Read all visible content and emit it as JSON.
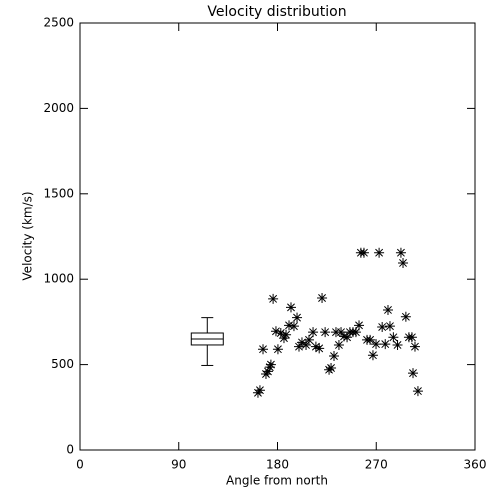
{
  "chart_data": {
    "type": "scatter",
    "title": "Velocity distribution",
    "x_label": "Angle from north",
    "y_label": "Velocity (km/s)",
    "xlim": [
      0,
      360
    ],
    "ylim": [
      0,
      2500
    ],
    "xticks": [
      0,
      90,
      180,
      270,
      360
    ],
    "yticks": [
      0,
      500,
      1000,
      1500,
      2000,
      2500
    ],
    "color": "#000000",
    "x": [
      162.2,
      164,
      166.8,
      169.5,
      171.3,
      173,
      174,
      176,
      178.6,
      180.4,
      183,
      185.9,
      187.8,
      190.5,
      192.3,
      195,
      197.8,
      199.6,
      202.3,
      206,
      208.7,
      212.4,
      215,
      218,
      220.6,
      223.4,
      227,
      228.8,
      231.5,
      233.3,
      236,
      237.9,
      240.6,
      243.4,
      246,
      248.8,
      251.5,
      254.3,
      256,
      258.8,
      261.6,
      264.4,
      267,
      269.8,
      272.6,
      275.4,
      278.2,
      280.7,
      282.5,
      285.6,
      289.4,
      292.5,
      294.4,
      297,
      299.8,
      302.5,
      303.5,
      305.3,
      308
    ],
    "y": [
      335,
      350,
      590,
      445,
      460,
      485,
      500,
      885,
      695,
      590,
      685,
      655,
      675,
      730,
      835,
      725,
      775,
      605,
      630,
      615,
      645,
      690,
      605,
      595,
      890,
      690,
      470,
      480,
      550,
      690,
      615,
      690,
      665,
      660,
      690,
      690,
      690,
      730,
      1155,
      1155,
      645,
      645,
      555,
      620,
      1155,
      720,
      620,
      820,
      725,
      660,
      615,
      1155,
      1095,
      780,
      660,
      660,
      450,
      605,
      345
    ],
    "box": {
      "x": 116,
      "whislo": 495,
      "q1": 615,
      "med": 650,
      "q3": 685,
      "whishi": 775
    }
  }
}
